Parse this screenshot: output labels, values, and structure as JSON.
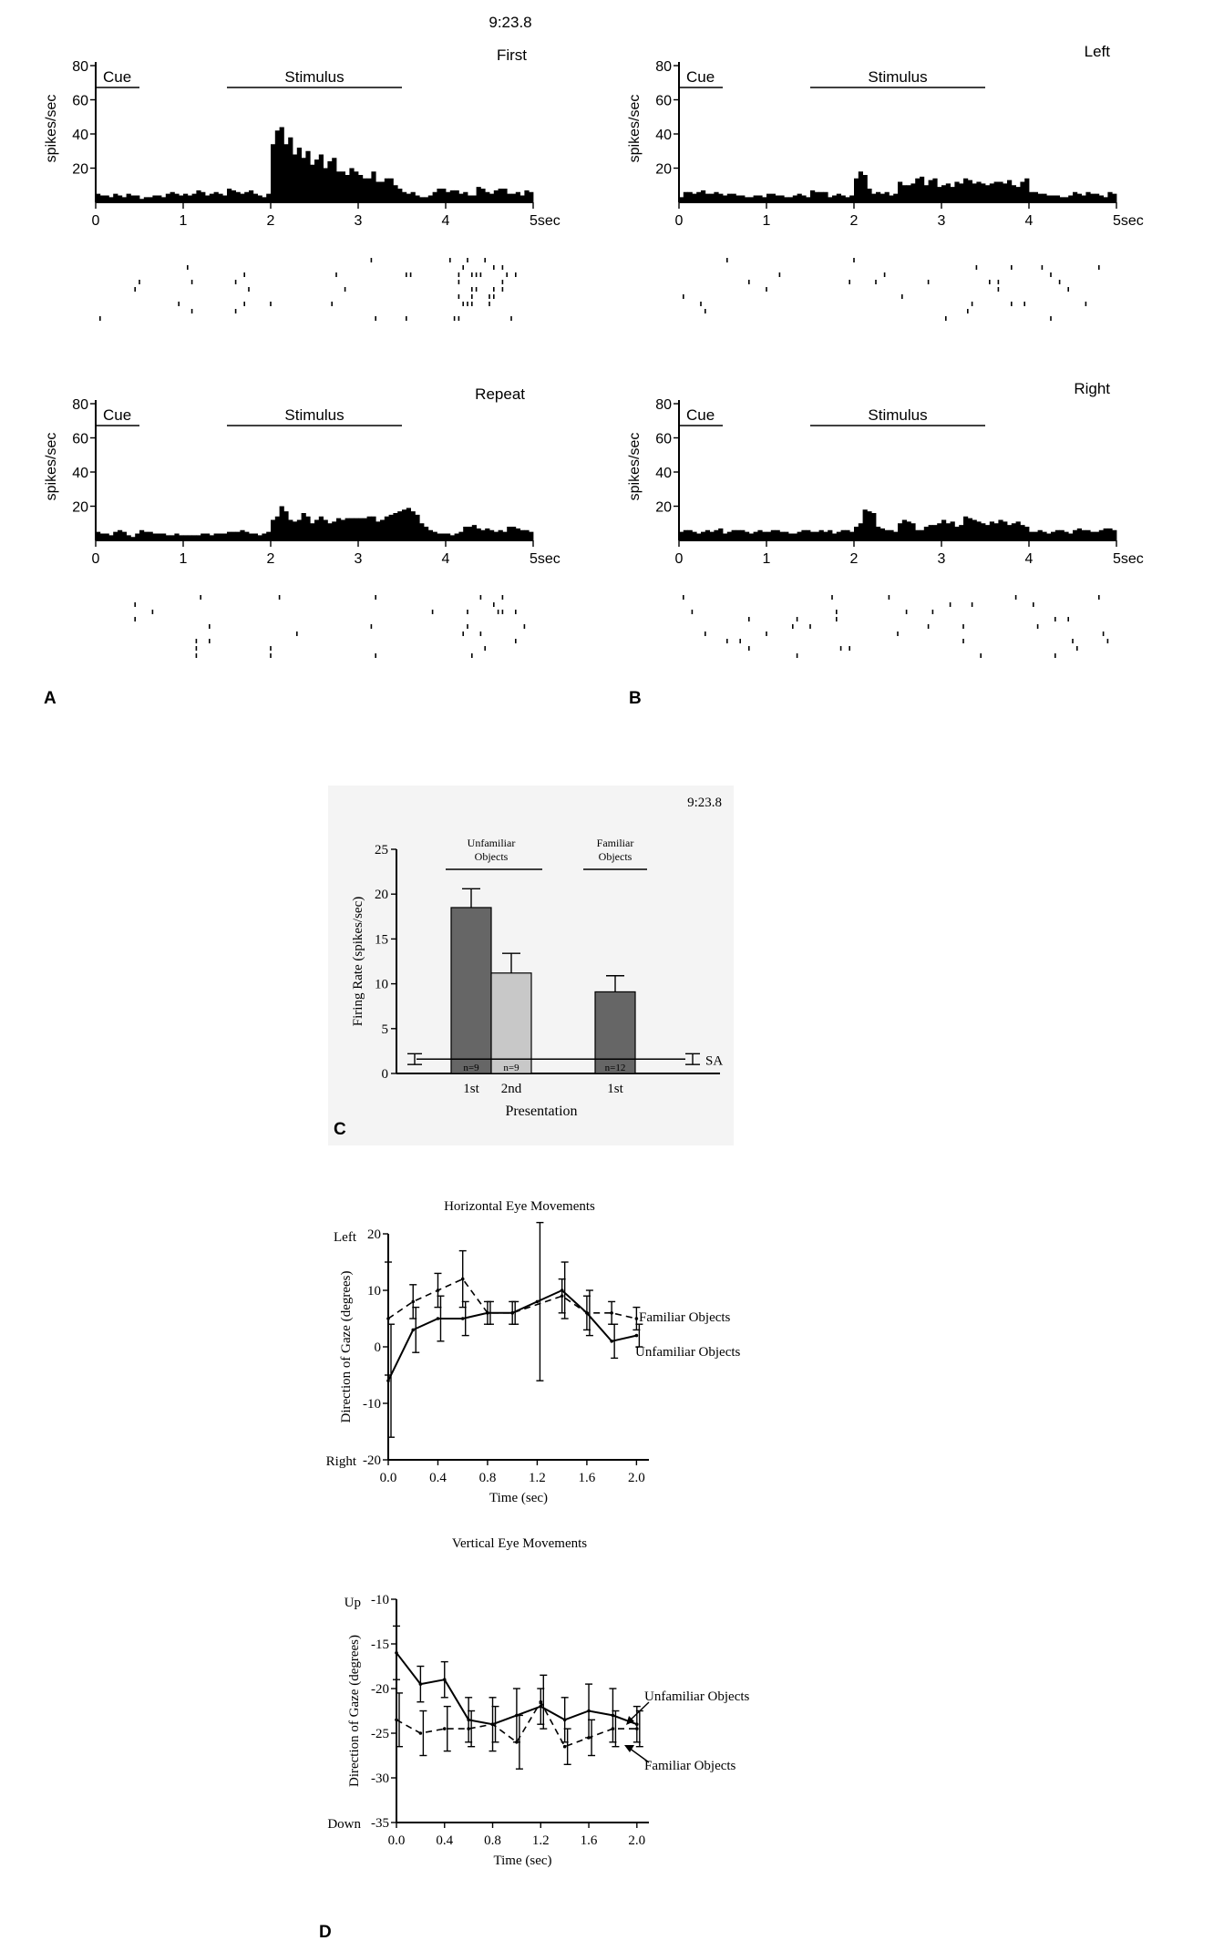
{
  "colors": {
    "ink": "#000000",
    "bar_dark": "#666666",
    "bar_light": "#c8c8c8",
    "paper": "#ffffff"
  },
  "panel_labels": {
    "A": "A",
    "B": "B",
    "C": "C",
    "D": "D"
  },
  "psth_header": "9:23.8",
  "chart_data": [
    {
      "id": "psth-first",
      "type": "bar",
      "title": "First",
      "ylabel": "spikes/sec",
      "ylim": [
        0,
        80
      ],
      "yticks": [
        "80",
        "60",
        "40",
        "20"
      ],
      "xticks": [
        "0",
        "1",
        "2",
        "3",
        "4",
        "5sec"
      ],
      "xlim": [
        0,
        5
      ],
      "epochs": [
        {
          "label": "Cue",
          "start": 0,
          "end": 0.5
        },
        {
          "label": "Stimulus",
          "start": 1.5,
          "end": 3.5
        }
      ],
      "bin_width": 0.1,
      "values": [
        5,
        4,
        4,
        3,
        5,
        4,
        3,
        5,
        4,
        4,
        2,
        3,
        3,
        4,
        4,
        3,
        5,
        6,
        5,
        4,
        5,
        4,
        5,
        7,
        6,
        4,
        5,
        6,
        5,
        4,
        8,
        7,
        6,
        5,
        6,
        7,
        5,
        4,
        3,
        5,
        34,
        42,
        44,
        34,
        38,
        28,
        32,
        26,
        30,
        22,
        25,
        28,
        20,
        24,
        26,
        18,
        18,
        16,
        20,
        18,
        16,
        14,
        14,
        18,
        12,
        12,
        14,
        14,
        10,
        8,
        6,
        5,
        6,
        4,
        3,
        3,
        4,
        6,
        8,
        8,
        6,
        7,
        7,
        5,
        6,
        4,
        4,
        9,
        8,
        6,
        5,
        7,
        8,
        8,
        5,
        5,
        6,
        4,
        7,
        6
      ],
      "values_comment_ignore": "",
      "raster_seed": 11
    },
    {
      "id": "psth-left",
      "type": "bar",
      "title": "Left",
      "ylabel": "spikes/sec",
      "ylim": [
        0,
        80
      ],
      "yticks": [
        "80",
        "60",
        "40",
        "20"
      ],
      "xticks": [
        "0",
        "1",
        "2",
        "3",
        "4",
        "5sec"
      ],
      "xlim": [
        0,
        5
      ],
      "epochs": [
        {
          "label": "Cue",
          "start": 0,
          "end": 0.5
        },
        {
          "label": "Stimulus",
          "start": 1.5,
          "end": 3.5
        }
      ],
      "bin_width": 0.1,
      "values": [
        3,
        6,
        6,
        5,
        6,
        7,
        5,
        5,
        6,
        5,
        4,
        5,
        5,
        4,
        4,
        3,
        3,
        4,
        4,
        3,
        5,
        5,
        4,
        4,
        3,
        3,
        4,
        5,
        4,
        3,
        7,
        6,
        6,
        6,
        3,
        4,
        5,
        4,
        3,
        4,
        14,
        18,
        16,
        8,
        5,
        6,
        5,
        6,
        4,
        5,
        12,
        10,
        10,
        11,
        14,
        15,
        10,
        13,
        14,
        9,
        10,
        11,
        9,
        12,
        11,
        14,
        13,
        11,
        12,
        11,
        10,
        11,
        12,
        12,
        11,
        13,
        10,
        9,
        12,
        14,
        6,
        6,
        5,
        5,
        4,
        4,
        4,
        3,
        3,
        4,
        6,
        5,
        4,
        6,
        5,
        5,
        4,
        3,
        6,
        5
      ],
      "raster_seed": 23
    },
    {
      "id": "psth-repeat",
      "type": "bar",
      "title": "Repeat",
      "ylabel": "spikes/sec",
      "ylim": [
        0,
        80
      ],
      "yticks": [
        "80",
        "60",
        "40",
        "20"
      ],
      "xticks": [
        "0",
        "1",
        "2",
        "3",
        "4",
        "5sec"
      ],
      "xlim": [
        0,
        5
      ],
      "epochs": [
        {
          "label": "Cue",
          "start": 0,
          "end": 0.5
        },
        {
          "label": "Stimulus",
          "start": 1.5,
          "end": 3.5
        }
      ],
      "bin_width": 0.1,
      "values": [
        5,
        4,
        4,
        3,
        5,
        6,
        5,
        3,
        2,
        4,
        6,
        5,
        5,
        4,
        4,
        4,
        3,
        3,
        4,
        3,
        3,
        3,
        3,
        3,
        4,
        4,
        3,
        4,
        4,
        4,
        5,
        5,
        5,
        6,
        5,
        4,
        4,
        3,
        4,
        5,
        12,
        14,
        20,
        17,
        12,
        11,
        12,
        16,
        14,
        10,
        12,
        14,
        12,
        10,
        11,
        13,
        12,
        13,
        13,
        13,
        13,
        13,
        14,
        14,
        11,
        12,
        14,
        15,
        16,
        17,
        18,
        19,
        17,
        15,
        10,
        8,
        6,
        5,
        4,
        4,
        4,
        3,
        4,
        5,
        8,
        8,
        9,
        7,
        6,
        7,
        6,
        5,
        6,
        5,
        8,
        8,
        7,
        6,
        6,
        5
      ],
      "raster_seed": 37
    },
    {
      "id": "psth-right",
      "type": "bar",
      "title": "Right",
      "ylabel": "spikes/sec",
      "ylim": [
        0,
        80
      ],
      "yticks": [
        "80",
        "60",
        "40",
        "20"
      ],
      "xticks": [
        "0",
        "1",
        "2",
        "3",
        "4",
        "5sec"
      ],
      "xlim": [
        0,
        5
      ],
      "epochs": [
        {
          "label": "Cue",
          "start": 0,
          "end": 0.5
        },
        {
          "label": "Stimulus",
          "start": 1.5,
          "end": 3.5
        }
      ],
      "bin_width": 0.1,
      "values": [
        5,
        6,
        6,
        5,
        4,
        5,
        6,
        5,
        6,
        7,
        4,
        5,
        6,
        6,
        6,
        5,
        4,
        5,
        6,
        5,
        5,
        6,
        6,
        5,
        5,
        4,
        4,
        5,
        6,
        6,
        5,
        5,
        6,
        5,
        6,
        4,
        5,
        6,
        6,
        5,
        8,
        10,
        18,
        17,
        16,
        8,
        7,
        6,
        6,
        5,
        10,
        12,
        11,
        10,
        6,
        6,
        8,
        9,
        9,
        10,
        12,
        10,
        11,
        8,
        9,
        14,
        13,
        12,
        11,
        10,
        9,
        11,
        10,
        12,
        11,
        9,
        10,
        11,
        9,
        8,
        5,
        5,
        6,
        5,
        4,
        5,
        6,
        6,
        5,
        4,
        6,
        7,
        6,
        6,
        5,
        5,
        6,
        7,
        7,
        6
      ],
      "raster_seed": 53
    },
    {
      "id": "firing-rate",
      "type": "bar",
      "title": "9:23.8",
      "xlabel": "Presentation",
      "ylabel": "Firing Rate (spikes/sec)",
      "ylim": [
        0,
        25
      ],
      "yticks": [
        "0",
        "5",
        "10",
        "15",
        "20",
        "25"
      ],
      "groups": [
        "Unfamiliar Objects",
        "Familiar Objects"
      ],
      "categories": [
        "1st",
        "2nd",
        "1st"
      ],
      "values": [
        18.5,
        11.2,
        9.1
      ],
      "errors": [
        2.1,
        2.2,
        1.8
      ],
      "n": [
        "n=9",
        "n=9",
        "n=12"
      ],
      "baseline": {
        "label": "SA",
        "value": 1.6,
        "error": 0.6
      }
    },
    {
      "id": "horizontal-eye",
      "type": "line",
      "title": "Horizontal Eye Movements",
      "xlabel": "Time (sec)",
      "ylabel": "Direction of Gaze (degrees)",
      "ylim": [
        -20,
        20
      ],
      "xlim": [
        0,
        2.1
      ],
      "xticks": [
        "0.0",
        "0.4",
        "0.8",
        "1.2",
        "1.6",
        "2.0"
      ],
      "yticks": [
        "20",
        "10",
        "0",
        "-10",
        "-20"
      ],
      "direction_labels": {
        "top": "Left",
        "bottom": "Right"
      },
      "series": [
        {
          "name": "Familiar Objects",
          "style": "dashed",
          "x": [
            0.0,
            0.2,
            0.4,
            0.6,
            0.8,
            1.0,
            1.4,
            1.6,
            1.8,
            2.0
          ],
          "y": [
            5,
            8,
            10,
            12,
            6,
            6,
            9,
            6,
            6,
            5
          ],
          "err": [
            10,
            3,
            3,
            5,
            2,
            2,
            3,
            3,
            2,
            2
          ]
        },
        {
          "name": "Unfamiliar Objects",
          "style": "solid",
          "x": [
            0.0,
            0.2,
            0.4,
            0.6,
            0.8,
            1.0,
            1.2,
            1.4,
            1.6,
            1.8,
            2.0
          ],
          "y": [
            -6,
            3,
            5,
            5,
            6,
            6,
            8,
            10,
            6,
            1,
            2
          ],
          "err": [
            10,
            4,
            4,
            3,
            2,
            2,
            14,
            5,
            4,
            3,
            2
          ]
        }
      ]
    },
    {
      "id": "vertical-eye",
      "type": "line",
      "title": "Vertical Eye Movements",
      "xlabel": "Time (sec)",
      "ylabel": "Direction of Gaze (degrees)",
      "ylim": [
        -35,
        -10
      ],
      "xlim": [
        0,
        2.1
      ],
      "xticks": [
        "0.0",
        "0.4",
        "0.8",
        "1.2",
        "1.6",
        "2.0"
      ],
      "yticks": [
        "-10",
        "-15",
        "-20",
        "-25",
        "-30",
        "-35"
      ],
      "direction_labels": {
        "top": "Up",
        "bottom": "Down"
      },
      "series": [
        {
          "name": "Unfamiliar Objects",
          "style": "solid",
          "x": [
            0.0,
            0.2,
            0.4,
            0.6,
            0.8,
            1.0,
            1.2,
            1.4,
            1.6,
            1.8,
            2.0
          ],
          "y": [
            -16,
            -19.5,
            -19,
            -23.5,
            -24,
            -23,
            -22,
            -23.5,
            -22.5,
            -23,
            -24
          ],
          "err": [
            3,
            2,
            2,
            2.5,
            3,
            3,
            2,
            2.5,
            3,
            3,
            2
          ]
        },
        {
          "name": "Familiar Objects",
          "style": "dashed",
          "x": [
            0.0,
            0.2,
            0.4,
            0.6,
            0.8,
            1.0,
            1.2,
            1.4,
            1.6,
            1.8,
            2.0
          ],
          "y": [
            -23.5,
            -25,
            -24.5,
            -24.5,
            -24,
            -26,
            -21.5,
            -26.5,
            -25.5,
            -24.5,
            -24.5
          ],
          "err": [
            3,
            2.5,
            2.5,
            2,
            2,
            3,
            3,
            2,
            2,
            2,
            2
          ]
        }
      ]
    }
  ]
}
